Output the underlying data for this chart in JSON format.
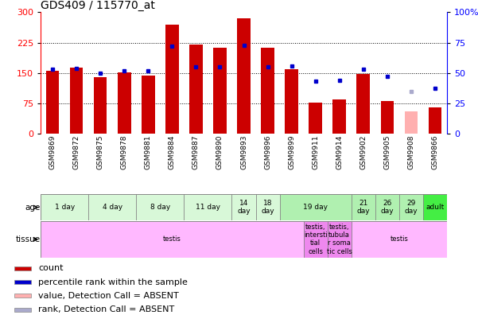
{
  "title": "GDS409 / 115770_at",
  "samples": [
    "GSM9869",
    "GSM9872",
    "GSM9875",
    "GSM9878",
    "GSM9881",
    "GSM9884",
    "GSM9887",
    "GSM9890",
    "GSM9893",
    "GSM9896",
    "GSM9899",
    "GSM9911",
    "GSM9914",
    "GSM9902",
    "GSM9905",
    "GSM9908",
    "GSM9866"
  ],
  "counts": [
    155,
    163,
    140,
    152,
    143,
    270,
    220,
    212,
    285,
    212,
    160,
    76,
    84,
    147,
    80,
    55,
    65
  ],
  "percentiles": [
    53,
    54,
    50,
    52,
    52,
    72,
    55,
    55,
    73,
    55,
    56,
    43,
    44,
    53,
    47,
    35,
    37
  ],
  "absent": [
    false,
    false,
    false,
    false,
    false,
    false,
    false,
    false,
    false,
    false,
    false,
    false,
    false,
    false,
    false,
    true,
    false
  ],
  "absent_rank": [
    false,
    false,
    false,
    false,
    false,
    false,
    false,
    false,
    false,
    false,
    false,
    false,
    false,
    false,
    false,
    true,
    false
  ],
  "bar_color": "#cc0000",
  "bar_absent_color": "#ffb0b0",
  "dot_color": "#0000cc",
  "dot_absent_color": "#aaaacc",
  "ylim_left": [
    0,
    300
  ],
  "ylim_right": [
    0,
    100
  ],
  "yticks_left": [
    0,
    75,
    150,
    225,
    300
  ],
  "yticks_right": [
    0,
    25,
    50,
    75,
    100
  ],
  "age_groups": [
    {
      "label": "1 day",
      "start": 0,
      "end": 2,
      "color": "#d8f8d8"
    },
    {
      "label": "4 day",
      "start": 2,
      "end": 4,
      "color": "#d8f8d8"
    },
    {
      "label": "8 day",
      "start": 4,
      "end": 6,
      "color": "#d8f8d8"
    },
    {
      "label": "11 day",
      "start": 6,
      "end": 8,
      "color": "#d8f8d8"
    },
    {
      "label": "14\nday",
      "start": 8,
      "end": 9,
      "color": "#d8f8d8"
    },
    {
      "label": "18\nday",
      "start": 9,
      "end": 10,
      "color": "#d8f8d8"
    },
    {
      "label": "19 day",
      "start": 10,
      "end": 13,
      "color": "#b0f0b0"
    },
    {
      "label": "21\nday",
      "start": 13,
      "end": 14,
      "color": "#b0f0b0"
    },
    {
      "label": "26\nday",
      "start": 14,
      "end": 15,
      "color": "#b0f0b0"
    },
    {
      "label": "29\nday",
      "start": 15,
      "end": 16,
      "color": "#b0f0b0"
    },
    {
      "label": "adult",
      "start": 16,
      "end": 17,
      "color": "#44ee44"
    }
  ],
  "tissue_groups": [
    {
      "label": "testis",
      "start": 0,
      "end": 11,
      "color": "#ffb8ff"
    },
    {
      "label": "testis,\nintersti\ntial\ncells",
      "start": 11,
      "end": 12,
      "color": "#ee88ee"
    },
    {
      "label": "testis,\ntubula\nr soma\ntic cells",
      "start": 12,
      "end": 13,
      "color": "#ee88ee"
    },
    {
      "label": "testis",
      "start": 13,
      "end": 17,
      "color": "#ffb8ff"
    }
  ],
  "legend_items": [
    {
      "color": "#cc0000",
      "label": "count"
    },
    {
      "color": "#0000cc",
      "label": "percentile rank within the sample"
    },
    {
      "color": "#ffb0b0",
      "label": "value, Detection Call = ABSENT"
    },
    {
      "color": "#aaaacc",
      "label": "rank, Detection Call = ABSENT"
    }
  ]
}
